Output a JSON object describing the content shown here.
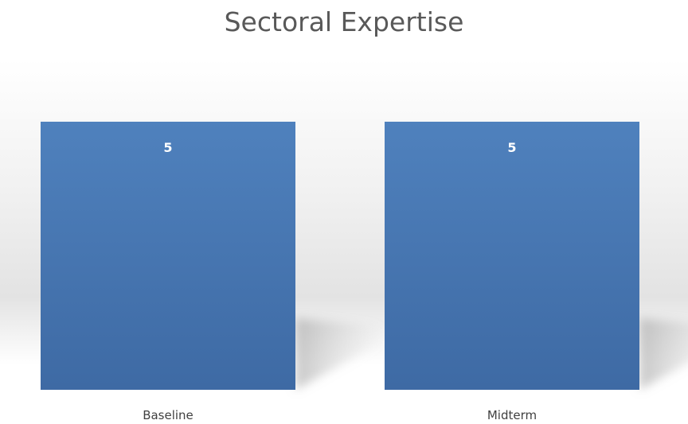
{
  "chart_data": {
    "type": "bar",
    "title": "Sectoral Expertise",
    "categories": [
      "Baseline",
      "Midterm"
    ],
    "values": [
      5,
      5
    ],
    "data_labels": [
      "5",
      "5"
    ],
    "xlabel": "",
    "ylabel": "",
    "ylim": [
      0,
      5
    ],
    "grid": false,
    "legend": "none",
    "colors": {
      "bar_top": "#4f81bd",
      "bar_bottom": "#3e6aa4",
      "data_label": "#ffffff",
      "title": "#595959",
      "axis_label": "#404040"
    }
  }
}
